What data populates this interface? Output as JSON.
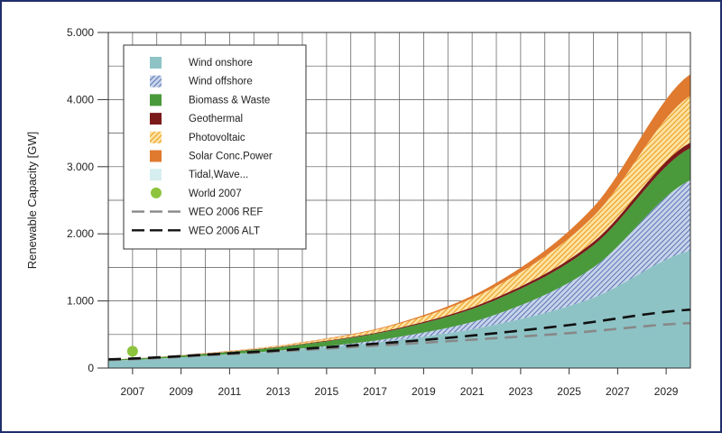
{
  "chart_data": {
    "type": "area",
    "ylabel": "Renewable Capacity [GW]",
    "xlabel": "",
    "title": "",
    "xlim": [
      2006,
      2030
    ],
    "ylim": [
      0,
      5000
    ],
    "x_ticks": [
      "2007",
      "2009",
      "2011",
      "2013",
      "2015",
      "2017",
      "2019",
      "2021",
      "2023",
      "2025",
      "2027",
      "2029"
    ],
    "y_ticks": [
      {
        "value": 0,
        "label": "0"
      },
      {
        "value": 1000,
        "label": "1.000"
      },
      {
        "value": 2000,
        "label": "2.000"
      },
      {
        "value": 3000,
        "label": "3.000"
      },
      {
        "value": 4000,
        "label": "4.000"
      },
      {
        "value": 5000,
        "label": "5.000"
      }
    ],
    "grid": true,
    "legend_position": "top-left",
    "x": [
      2006,
      2010,
      2014,
      2018,
      2022,
      2026,
      2030
    ],
    "stacked_series": [
      {
        "name": "Wind onshore",
        "color": "#8ec3c6",
        "pattern": "none",
        "values": [
          110,
          180,
          280,
          420,
          650,
          1050,
          1750
        ]
      },
      {
        "name": "Wind offshore",
        "color": "#4f6fb3",
        "pattern": "hatch-blue",
        "values": [
          0,
          2,
          12,
          45,
          150,
          450,
          1050
        ]
      },
      {
        "name": "Biomass & Waste",
        "color": "#4a9a3c",
        "pattern": "none",
        "values": [
          15,
          30,
          60,
          120,
          220,
          330,
          480
        ]
      },
      {
        "name": "Geothermal",
        "color": "#7b1a1a",
        "pattern": "none",
        "values": [
          2,
          4,
          8,
          15,
          30,
          50,
          80
        ]
      },
      {
        "name": "Photovoltaic",
        "color": "#f2b623",
        "pattern": "hatch-orange",
        "values": [
          1,
          6,
          20,
          60,
          170,
          380,
          700
        ]
      },
      {
        "name": "Solar Conc.Power",
        "color": "#e07a2e",
        "pattern": "none",
        "values": [
          0,
          2,
          6,
          15,
          50,
          140,
          320
        ]
      },
      {
        "name": "Tidal,Wave...",
        "color": "#d6eef0",
        "pattern": "none",
        "values": [
          0,
          0,
          0,
          0,
          1,
          2,
          3
        ]
      }
    ],
    "points": [
      {
        "name": "World 2007",
        "color": "#8dc43e",
        "x": 2007,
        "y": 250
      }
    ],
    "lines": [
      {
        "name": "WEO 2006 REF",
        "color": "#888888",
        "dash": "long",
        "x": [
          2006,
          2010,
          2015,
          2020,
          2025,
          2030
        ],
        "y": [
          120,
          190,
          290,
          400,
          520,
          670
        ]
      },
      {
        "name": "WEO 2006 ALT",
        "color": "#111111",
        "dash": "long",
        "x": [
          2006,
          2010,
          2015,
          2020,
          2025,
          2030
        ],
        "y": [
          130,
          200,
          310,
          450,
          640,
          870
        ]
      }
    ]
  }
}
